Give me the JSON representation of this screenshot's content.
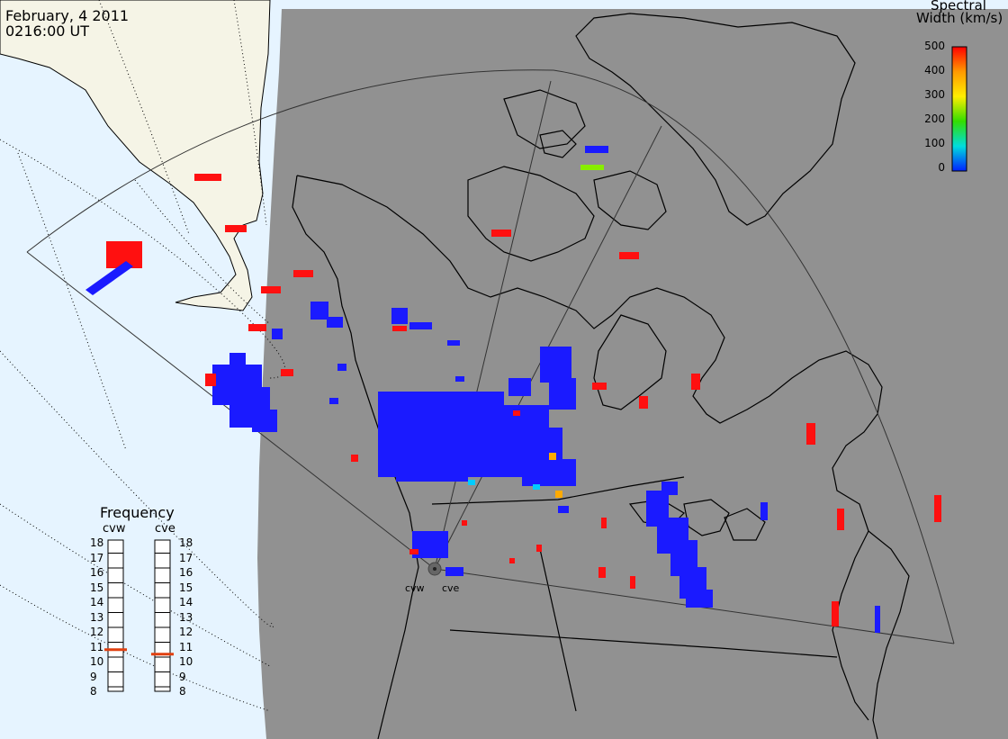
{
  "header": {
    "date": "February, 4 2011",
    "time": "0216:00 UT"
  },
  "colorbar": {
    "title_line1": "Spectral",
    "title_line2": "Width (km/s)",
    "ticks": [
      "500",
      "400",
      "300",
      "200",
      "100",
      "0"
    ],
    "stops": [
      "#ff0000",
      "#ff9900",
      "#ffee00",
      "#33dd00",
      "#00dddd",
      "#0022ff"
    ]
  },
  "frequency_panel": {
    "title": "Frequency",
    "left_label": "cvw",
    "right_label": "cve",
    "scale": [
      "18",
      "17",
      "16",
      "15",
      "14",
      "13",
      "12",
      "11",
      "10",
      "9",
      "8"
    ],
    "cvw_freq_mhz": 10.8,
    "cve_freq_mhz": 10.5,
    "marker_color": "#e04010"
  },
  "radars": {
    "west": "cvw",
    "east": "cve"
  },
  "colors": {
    "ocean": "#e6f4ff",
    "land_daylight": "#f5f4e6",
    "night_side": "#919191",
    "echo_blue": "#1a1aff",
    "echo_red": "#ff1010",
    "echo_green": "#88ee00",
    "echo_orange": "#ffaa00",
    "echo_cyan": "#00ccff"
  }
}
